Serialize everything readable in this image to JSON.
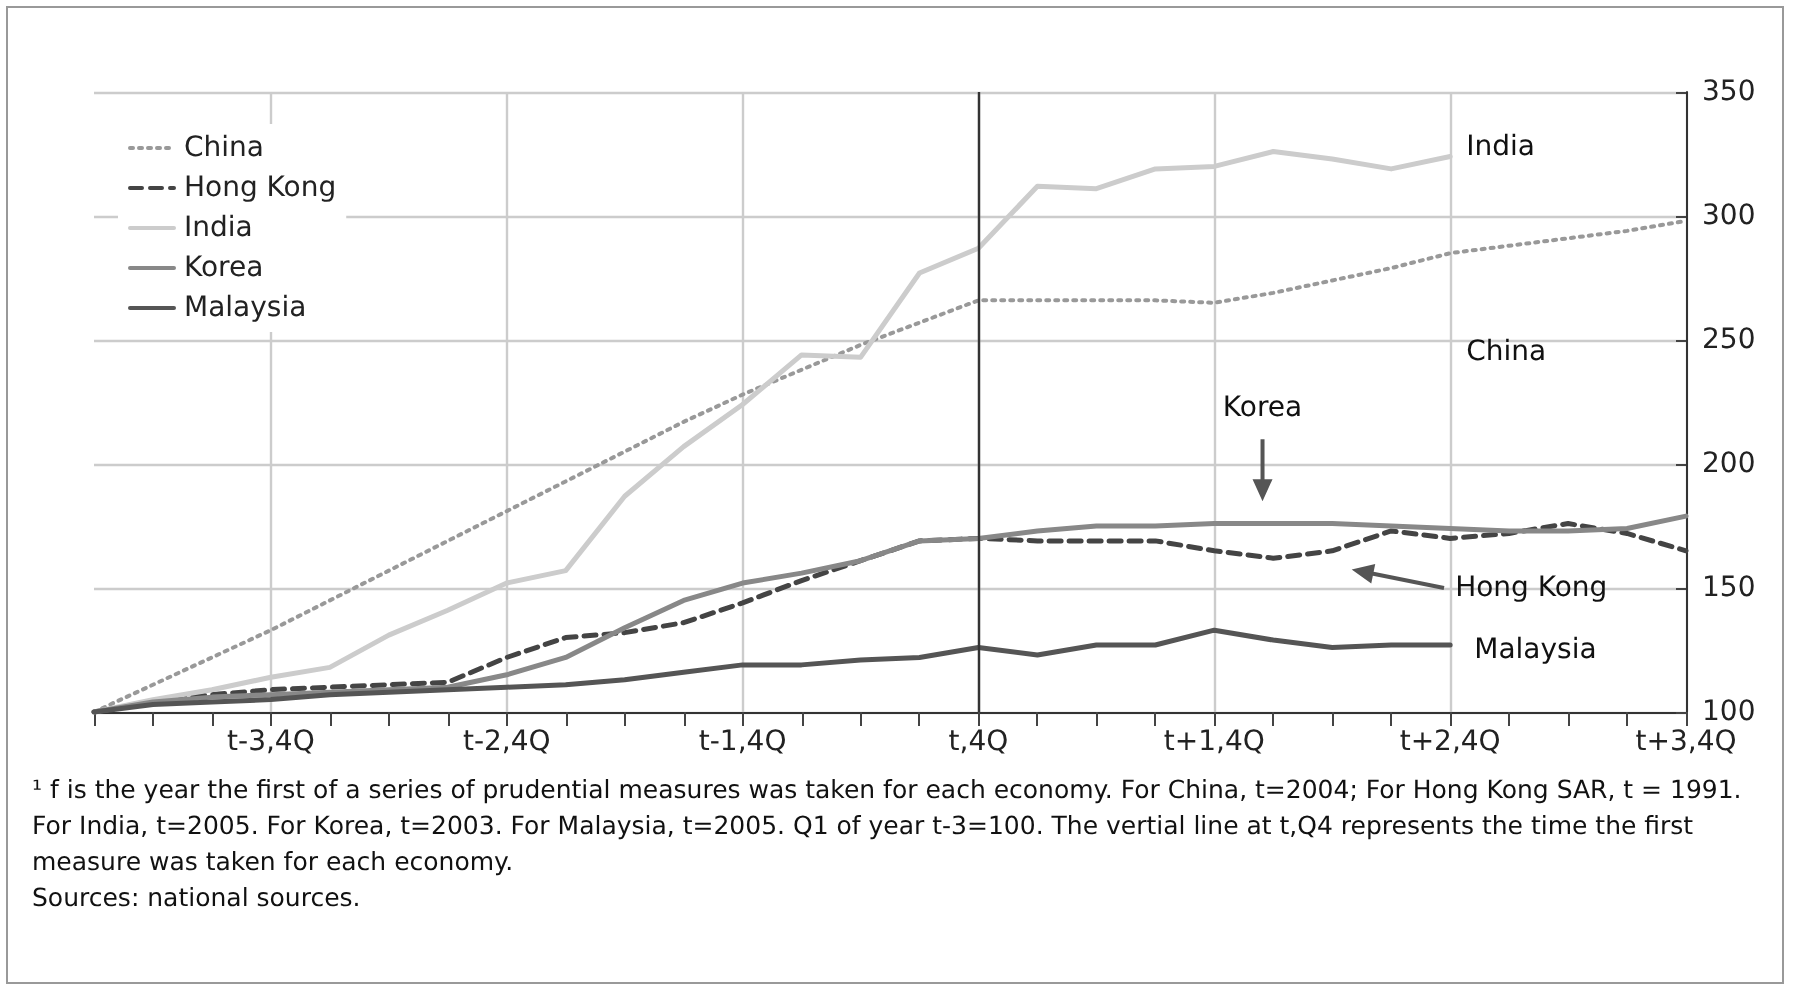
{
  "chart_data": {
    "type": "line",
    "categories": [
      null,
      null,
      null,
      "t-3,4Q",
      null,
      null,
      null,
      "t-2,4Q",
      null,
      null,
      null,
      "t-1,4Q",
      null,
      null,
      null,
      "t,4Q",
      null,
      null,
      null,
      "t+1,4Q",
      null,
      null,
      null,
      "t+2,4Q",
      null,
      null,
      null,
      "t+3,4Q"
    ],
    "series": [
      {
        "name": "China",
        "color": "#999999",
        "line_style": "dotted",
        "values": [
          100,
          111,
          122,
          133,
          145,
          157,
          169,
          181,
          193,
          205,
          217,
          228,
          238,
          248,
          257,
          266,
          266,
          266,
          266,
          265,
          269,
          274,
          279,
          285,
          288,
          291,
          294,
          298
        ]
      },
      {
        "name": "Hong Kong",
        "color": "#444444",
        "line_style": "dashed",
        "values": [
          100,
          104,
          107,
          109,
          110,
          111,
          112,
          122,
          130,
          132,
          136,
          144,
          153,
          161,
          169,
          170,
          169,
          169,
          169,
          165,
          162,
          165,
          173,
          170,
          172,
          176,
          172,
          165
        ]
      },
      {
        "name": "India",
        "color": "#cccccc",
        "line_style": "solid",
        "values": [
          100,
          105,
          109,
          114,
          118,
          131,
          141,
          152,
          157,
          187,
          207,
          224,
          244,
          243,
          277,
          287,
          312,
          311,
          319,
          320,
          326,
          323,
          319,
          324,
          null,
          null,
          null,
          null
        ]
      },
      {
        "name": "Korea",
        "color": "#888888",
        "line_style": "solid",
        "values": [
          100,
          104,
          106,
          107,
          108,
          109,
          110,
          115,
          122,
          134,
          145,
          152,
          156,
          161,
          169,
          170,
          173,
          175,
          175,
          176,
          176,
          176,
          175,
          174,
          173,
          173,
          174,
          179
        ]
      },
      {
        "name": "Malaysia",
        "color": "#555555",
        "line_style": "solid",
        "values": [
          100,
          103,
          104,
          105,
          107,
          108,
          109,
          110,
          111,
          113,
          116,
          119,
          119,
          121,
          122,
          126,
          123,
          127,
          127,
          133,
          129,
          126,
          127,
          127,
          null,
          null,
          null,
          null
        ]
      }
    ],
    "ylim": [
      100,
      350
    ],
    "yticks": [
      100,
      150,
      200,
      250,
      300,
      350
    ],
    "ref_lines": [
      {
        "axis": "x",
        "value": "t,4Q",
        "color": "#333333"
      }
    ],
    "grid": true,
    "legend": "top left",
    "marker": "none",
    "annotations": [
      "India",
      "China",
      "Korea",
      "Hong Kong",
      "Malaysia",
      "¹ f is the year the first of a series of prudential measures was taken for each economy. For China, t=2004; For Hong Kong SAR, t = 1991. For India, t=2005. For Korea, t=2003. For Malaysia, t=2005. Q1 of year t-3=100. The vertial line at t,Q4 represents the time the first measure was taken for each economy.",
      "Sources: national sources."
    ]
  }
}
